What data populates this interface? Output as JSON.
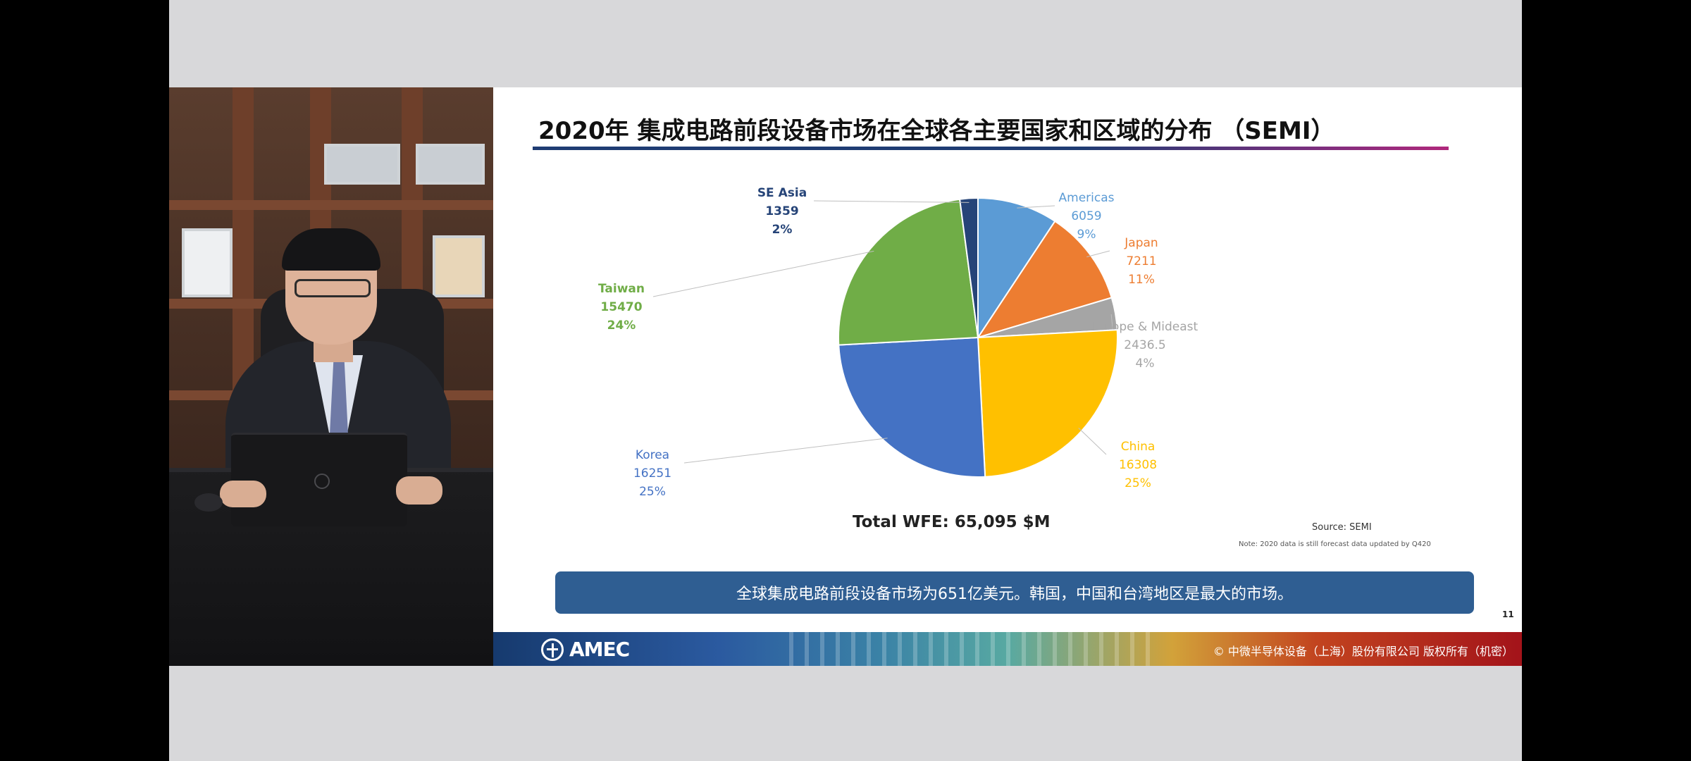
{
  "slide": {
    "title": "2020年 集成电路前段设备市场在全球各主要国家和区域的分布 （SEMI）",
    "total_label": "Total WFE: 65,095 $M",
    "source": "Source:  SEMI",
    "note": "Note: 2020 data is still forecast data updated by Q420",
    "summary": "全球集成电路前段设备市场为651亿美元。韩国，中国和台湾地区是最大的市场。",
    "page_number": "11",
    "footer": {
      "logo_text": "AMEC",
      "copyright": "© 中微半导体设备（上海）股份有限公司 版权所有（机密）"
    }
  },
  "chart_data": {
    "type": "pie",
    "title": "2020年 集成电路前段设备市场在全球各主要国家和区域的分布 （SEMI）",
    "total": "Total WFE: 65,095 $M",
    "slices": [
      {
        "name": "Americas",
        "value": 6059,
        "value_label": "6059",
        "pct": "9%",
        "color": "#5b9bd5"
      },
      {
        "name": "Japan",
        "value": 7211,
        "value_label": "7211",
        "pct": "11%",
        "color": "#ed7d31"
      },
      {
        "name": "Europe & Mideast",
        "value": 2436.5,
        "value_label": "2436.5",
        "pct": "4%",
        "color": "#a5a5a5"
      },
      {
        "name": "China",
        "value": 16308,
        "value_label": "16308",
        "pct": "25%",
        "color": "#ffc000"
      },
      {
        "name": "Korea",
        "value": 16251,
        "value_label": "16251",
        "pct": "25%",
        "color": "#4472c4"
      },
      {
        "name": "Taiwan",
        "value": 15470,
        "value_label": "15470",
        "pct": "24%",
        "color": "#70ad47"
      },
      {
        "name": "SE Asia",
        "value": 1359,
        "value_label": "1359",
        "pct": "2%",
        "color": "#264478"
      }
    ]
  },
  "colors": {
    "summary_bar": "#2f5e92",
    "title_rule_start": "#1f3c73",
    "title_rule_end": "#b0287c"
  }
}
